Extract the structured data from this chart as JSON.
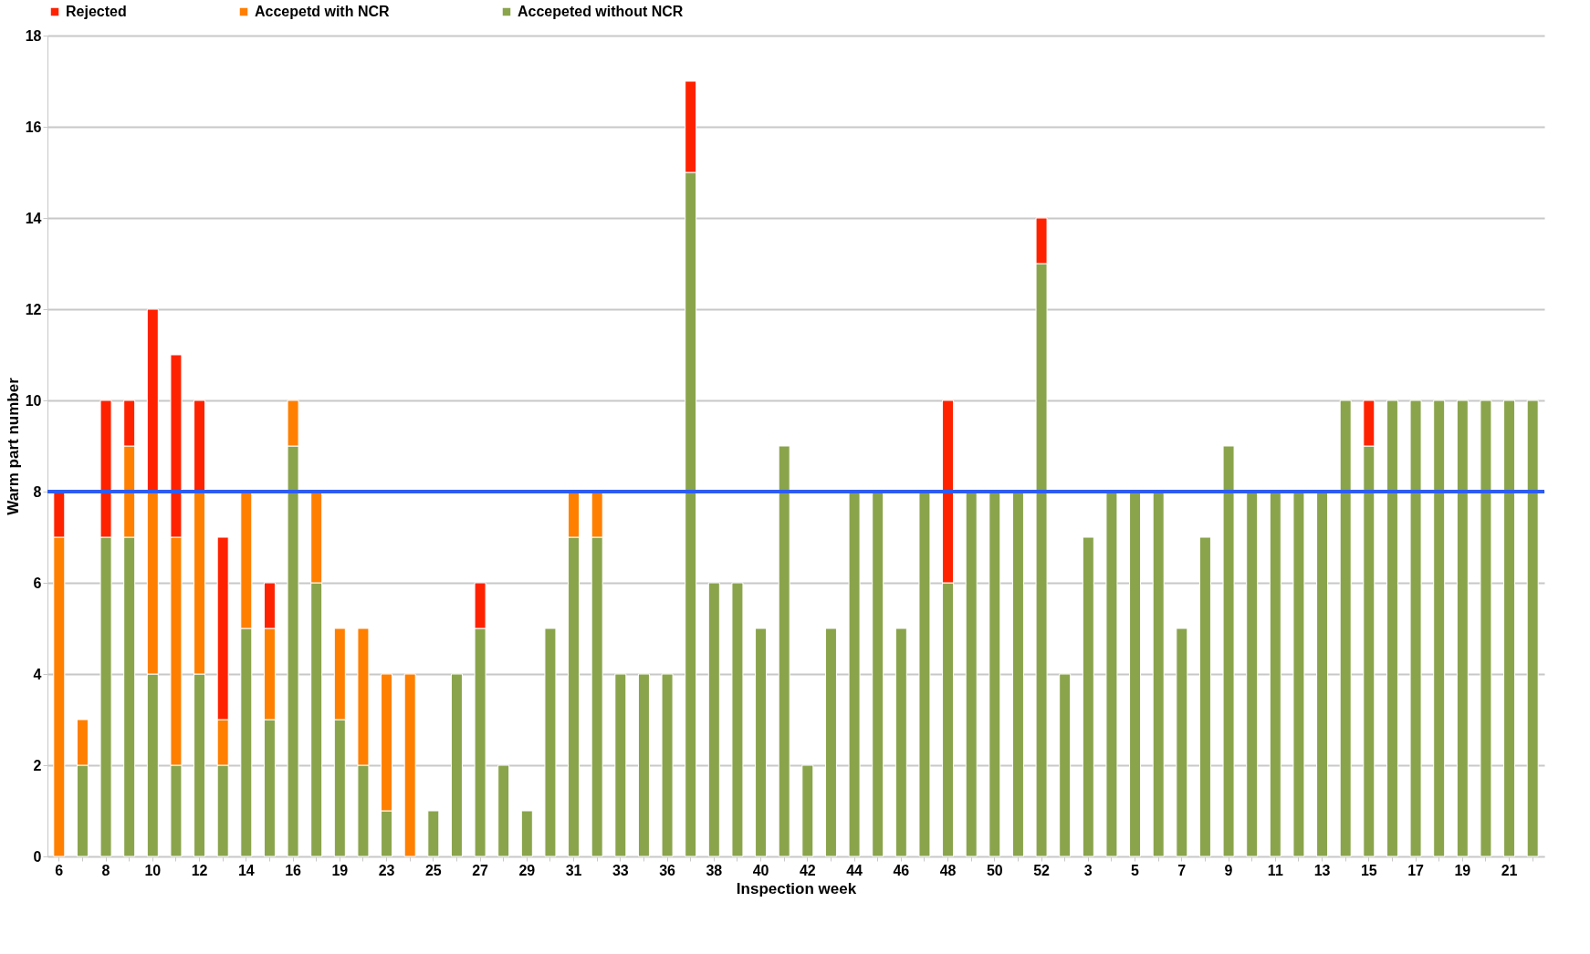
{
  "chart_data": {
    "type": "bar",
    "stacked": true,
    "xlabel": "Inspection week",
    "ylabel": "Warm part number",
    "categories": [
      "6",
      null,
      "8",
      null,
      "10",
      null,
      "12",
      null,
      "14",
      null,
      "16",
      null,
      "19",
      null,
      "23",
      null,
      "25",
      null,
      "27",
      null,
      "29",
      null,
      "31",
      null,
      "33",
      null,
      "36",
      null,
      "38",
      null,
      "40",
      null,
      "42",
      null,
      "44",
      null,
      "46",
      null,
      "48",
      null,
      "50",
      null,
      "52",
      null,
      "3",
      null,
      "5",
      null,
      "7",
      null,
      "9",
      null,
      "11",
      null,
      "13",
      null,
      "15",
      null,
      "17",
      null,
      "19",
      null,
      "21",
      null
    ],
    "series": [
      {
        "name": "Accepeted without NCR",
        "color": "#8aa44c",
        "values": [
          null,
          2,
          7,
          7,
          4,
          2,
          4,
          2,
          5,
          3,
          9,
          6,
          3,
          2,
          1,
          null,
          1,
          4,
          5,
          2,
          1,
          5,
          7,
          7,
          4,
          4,
          4,
          15,
          6,
          6,
          5,
          9,
          2,
          5,
          8,
          8,
          5,
          8,
          6,
          8,
          8,
          8,
          13,
          4,
          7,
          8,
          8,
          8,
          5,
          7,
          9,
          8,
          8,
          8,
          8,
          10,
          9,
          10,
          10,
          10,
          10,
          10,
          10,
          10
        ]
      },
      {
        "name": "Accepetd with NCR",
        "color": "#ff7f00",
        "values": [
          7,
          1,
          null,
          2,
          4,
          5,
          4,
          1,
          3,
          2,
          1,
          2,
          2,
          3,
          3,
          4,
          null,
          null,
          null,
          null,
          null,
          null,
          1,
          1,
          null,
          null,
          null,
          null,
          null,
          null,
          null,
          null,
          null,
          null,
          null,
          null,
          null,
          null,
          null,
          null,
          null,
          null,
          null,
          null,
          null,
          null,
          null,
          null,
          null,
          null,
          null,
          null,
          null,
          null,
          null,
          null,
          null,
          null,
          null,
          null,
          null,
          null,
          null,
          null
        ]
      },
      {
        "name": "Rejected",
        "color": "#ff2200",
        "values": [
          1,
          null,
          3,
          1,
          4,
          4,
          2,
          4,
          null,
          1,
          null,
          null,
          null,
          null,
          null,
          null,
          null,
          null,
          1,
          null,
          null,
          null,
          null,
          null,
          null,
          null,
          null,
          2,
          null,
          null,
          null,
          null,
          null,
          null,
          null,
          null,
          null,
          null,
          4,
          null,
          null,
          null,
          1,
          null,
          null,
          null,
          null,
          null,
          null,
          null,
          null,
          null,
          null,
          null,
          null,
          null,
          1,
          null,
          null,
          null,
          null,
          null,
          null,
          null
        ]
      }
    ],
    "ylim": [
      0,
      18
    ],
    "yticks": [
      0,
      2,
      4,
      6,
      8,
      10,
      12,
      14,
      16,
      18
    ],
    "grid": "y",
    "legend": "top",
    "ref_lines": [
      {
        "axis": "y",
        "value": 8,
        "color": "#2e5cf0"
      }
    ]
  }
}
